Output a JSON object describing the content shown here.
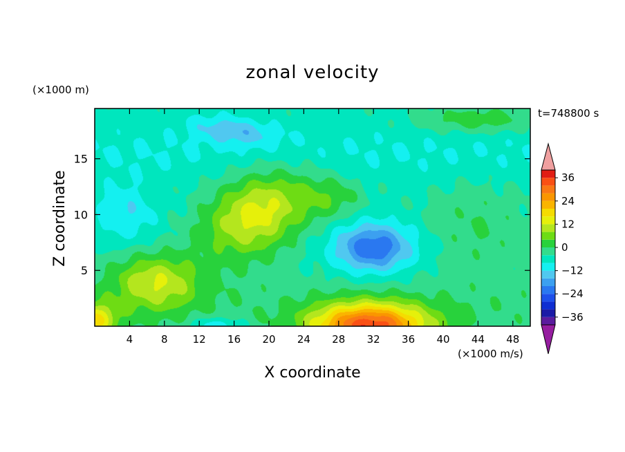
{
  "chart_data": {
    "type": "heatmap",
    "title": "zonal velocity",
    "xlabel": "X coordinate",
    "ylabel": "Z coordinate",
    "x_unit": "(×1000 m/s)",
    "y_unit": "(×1000 m)",
    "time_label": "t=748800 s",
    "xlim": [
      0,
      50
    ],
    "ylim": [
      0,
      19.5
    ],
    "x_ticks": [
      4,
      8,
      12,
      16,
      20,
      24,
      28,
      32,
      36,
      40,
      44,
      48
    ],
    "y_ticks": [
      5,
      10,
      15
    ],
    "colorbar": {
      "levels": [
        -40,
        -36,
        -32,
        -28,
        -24,
        -20,
        -16,
        -12,
        -8,
        -4,
        0,
        4,
        8,
        12,
        16,
        20,
        24,
        28,
        32,
        36,
        40
      ],
      "colors": [
        "#5b1c9e",
        "#1a1aa6",
        "#0f2ed2",
        "#1e50ea",
        "#2a78f0",
        "#3ca0f0",
        "#50c8f0",
        "#14f0f0",
        "#00e6be",
        "#32dc8c",
        "#28d23c",
        "#6edc14",
        "#b4e61e",
        "#e6f00a",
        "#f5dc00",
        "#fab400",
        "#fa9600",
        "#fa7814",
        "#fa5014",
        "#e11e14"
      ],
      "under_color": "#961ea0",
      "over_color": "#f0a0a0",
      "tick_values": [
        36,
        24,
        12,
        0,
        -12,
        -24,
        -36
      ],
      "tick_labels": [
        "36",
        "24",
        "12",
        "0",
        "−12",
        "−24",
        "−36"
      ]
    },
    "features": [
      {
        "x": 16,
        "z": 17.5,
        "value": -14,
        "sx": 5,
        "sz": 1.2,
        "rot": 0.1
      },
      {
        "x": 3.5,
        "z": 10,
        "value": -12,
        "sx": 3.5,
        "sz": 2.5,
        "rot": 0
      },
      {
        "x": 32,
        "z": 7,
        "value": -24,
        "sx": 4.5,
        "sz": 2.2,
        "rot": 0
      },
      {
        "x": 31.5,
        "z": 0,
        "value": 32,
        "sx": 6.5,
        "sz": 2.0,
        "rot": 0
      },
      {
        "x": 18.5,
        "z": 10,
        "value": 14,
        "sx": 6,
        "sz": 3.5,
        "rot": -0.3
      },
      {
        "x": 7,
        "z": 4,
        "value": 10,
        "sx": 5,
        "sz": 2.5,
        "rot": 0
      },
      {
        "x": 0,
        "z": 0.5,
        "value": 14,
        "sx": 2.5,
        "sz": 1.5,
        "rot": 0
      },
      {
        "x": 14,
        "z": 0,
        "value": -14,
        "sx": 3,
        "sz": 0.8,
        "rot": 0
      },
      {
        "x": 44,
        "z": 18.5,
        "value": 3,
        "sx": 7,
        "sz": 1.2,
        "rot": 0
      },
      {
        "x": 27,
        "z": 11.5,
        "value": 2,
        "sx": 4,
        "sz": 2,
        "rot": 0
      },
      {
        "x": 44,
        "z": 9,
        "value": 0,
        "sx": 6,
        "sz": 4,
        "rot": 0
      }
    ],
    "background_value": -5
  }
}
